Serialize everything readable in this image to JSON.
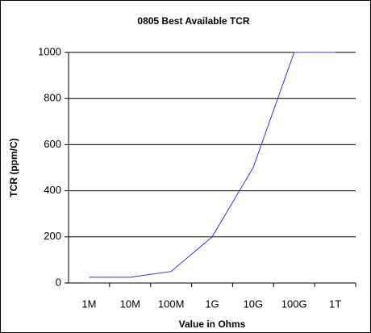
{
  "chart_data": {
    "type": "line",
    "title": "0805 Best Available TCR",
    "x_label": "Value in Ohms",
    "y_label": "TCR (ppm/C)",
    "categories": [
      "1M",
      "10M",
      "100M",
      "1G",
      "10G",
      "100G",
      "1T"
    ],
    "series": [
      {
        "name": "TCR",
        "color": "#3333cc",
        "values": [
          25,
          25,
          50,
          200,
          500,
          1000,
          1000
        ]
      }
    ],
    "ylim": [
      0,
      1000
    ],
    "yticks": [
      0,
      200,
      400,
      600,
      800,
      1000
    ],
    "grid": true
  }
}
